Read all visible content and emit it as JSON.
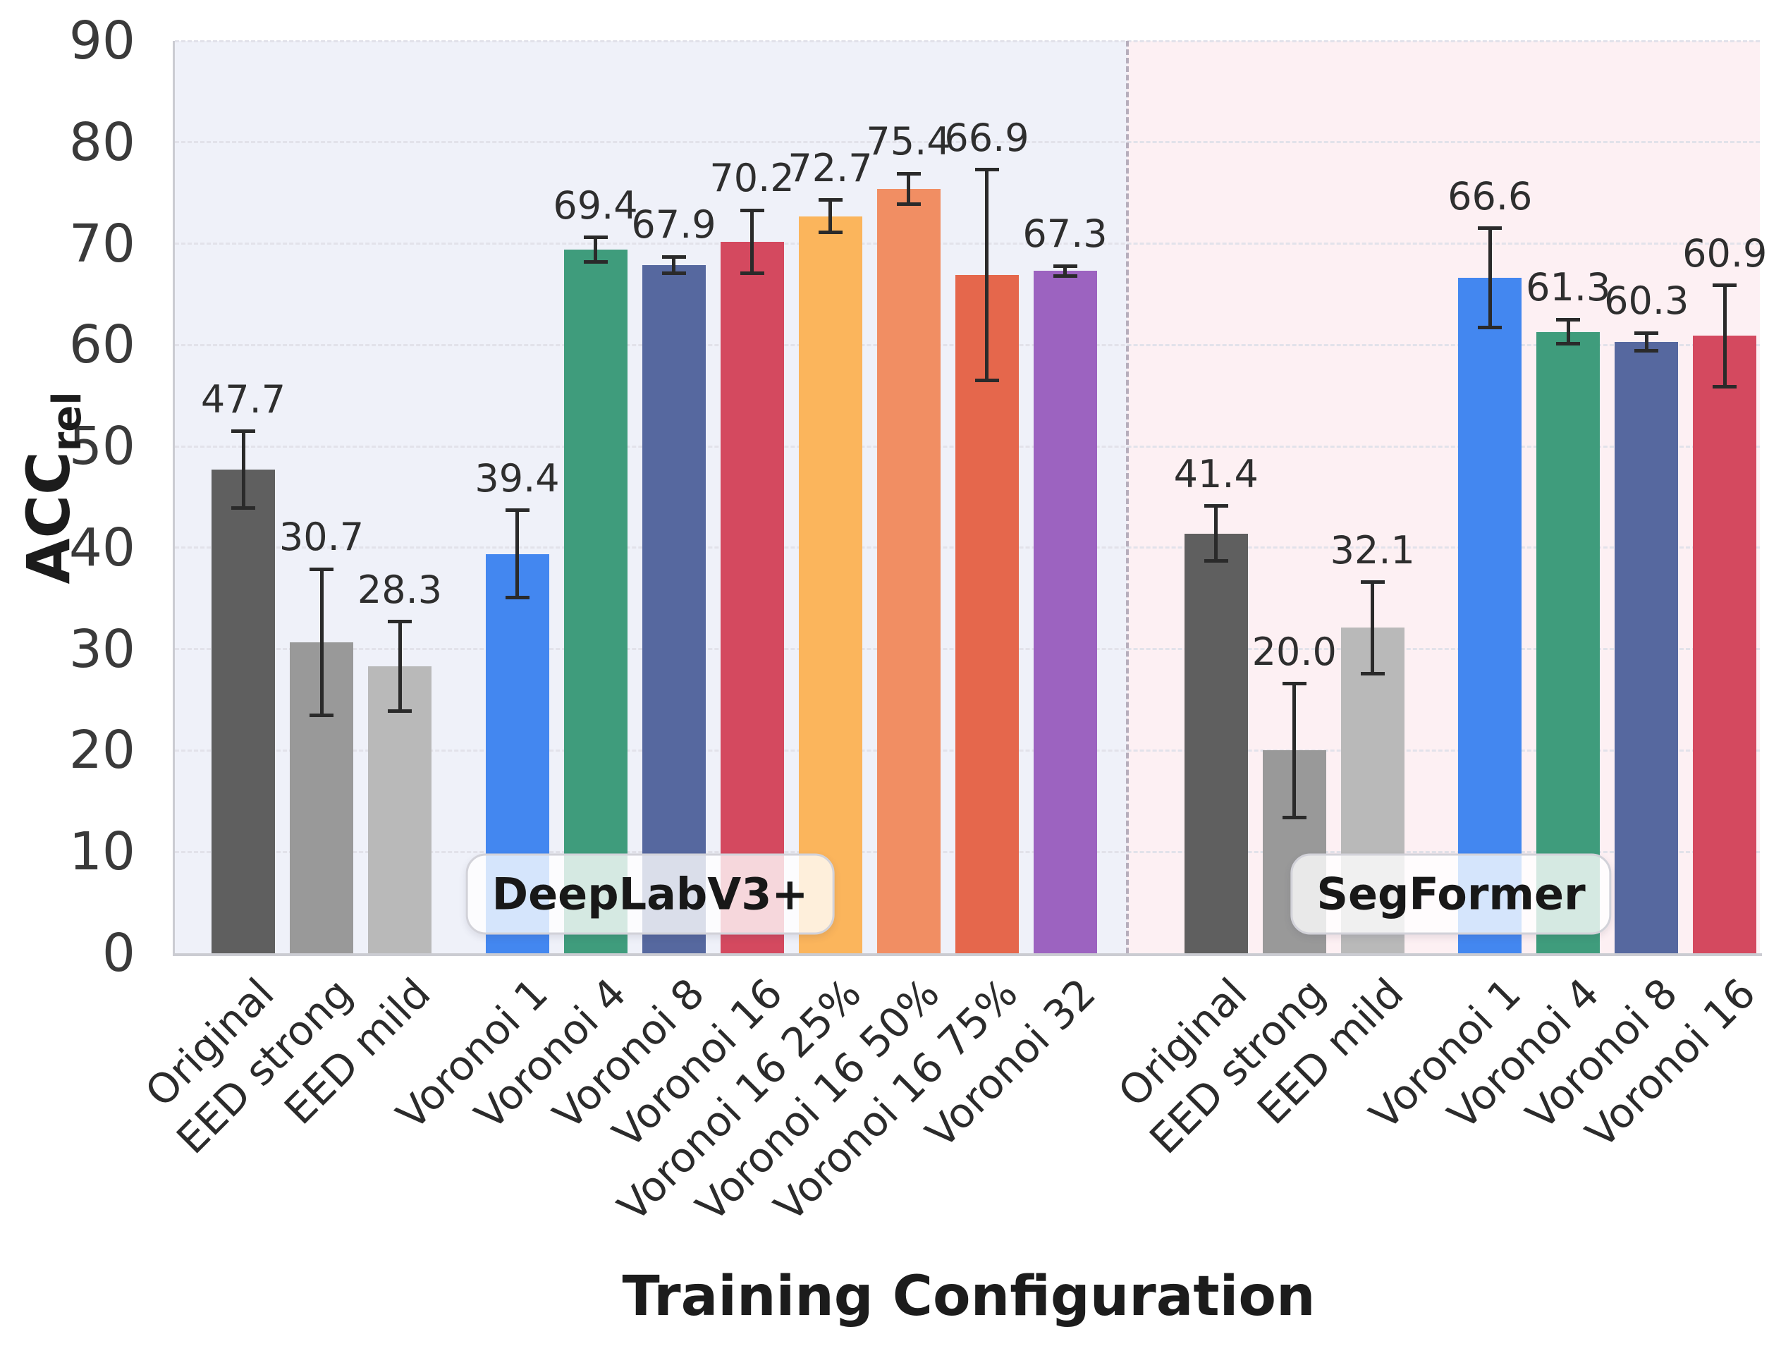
{
  "chart_data": {
    "type": "bar",
    "xlabel": "Training Configuration",
    "ylabel_main": "ACC",
    "ylabel_sub": "rel",
    "ylim": [
      0,
      90
    ],
    "yticks": [
      0,
      10,
      20,
      30,
      40,
      50,
      60,
      70,
      80,
      90
    ],
    "grid": "horizontal-dashed",
    "legend": "none",
    "separator": {
      "style": "dashed",
      "color": "#b7aebc"
    },
    "groups": [
      {
        "name": "DeepLabV3+",
        "region_color": "#eff1f9",
        "bars": [
          {
            "label": "Original",
            "value": 47.7,
            "err": 3.8,
            "color": "#5f5f5f"
          },
          {
            "label": "EED strong",
            "value": 30.7,
            "err": 7.2,
            "color": "#999999"
          },
          {
            "label": "EED mild",
            "value": 28.3,
            "err": 4.4,
            "color": "#b9b9b9"
          },
          {
            "label": "Voronoi 1",
            "value": 39.4,
            "err": 4.3,
            "color": "#4387f0"
          },
          {
            "label": "Voronoi 4",
            "value": 69.4,
            "err": 1.2,
            "color": "#3f9c7c"
          },
          {
            "label": "Voronoi 8",
            "value": 67.9,
            "err": 0.8,
            "color": "#56689f"
          },
          {
            "label": "Voronoi 16",
            "value": 70.2,
            "err": 3.1,
            "color": "#d4495f"
          },
          {
            "label": "Voronoi 16 25%",
            "value": 72.7,
            "err": 1.6,
            "color": "#fbb55c"
          },
          {
            "label": "Voronoi 16 50%",
            "value": 75.4,
            "err": 1.5,
            "color": "#f18e63"
          },
          {
            "label": "Voronoi 16 75%",
            "value": 66.9,
            "err": 10.4,
            "color": "#e5674c"
          },
          {
            "label": "Voronoi 32",
            "value": 67.3,
            "err": 0.5,
            "color": "#9c63c0"
          }
        ]
      },
      {
        "name": "SegFormer",
        "region_color": "#fdf0f3",
        "bars": [
          {
            "label": "Original",
            "value": 41.4,
            "err": 2.7,
            "color": "#5f5f5f"
          },
          {
            "label": "EED strong",
            "value": 20.0,
            "err": 6.6,
            "color": "#999999"
          },
          {
            "label": "EED mild",
            "value": 32.1,
            "err": 4.5,
            "color": "#b9b9b9"
          },
          {
            "label": "Voronoi 1",
            "value": 66.6,
            "err": 4.9,
            "color": "#4387f0"
          },
          {
            "label": "Voronoi 4",
            "value": 61.3,
            "err": 1.2,
            "color": "#3f9c7c"
          },
          {
            "label": "Voronoi 8",
            "value": 60.3,
            "err": 0.9,
            "color": "#56689f"
          },
          {
            "label": "Voronoi 16",
            "value": 60.9,
            "err": 5.0,
            "color": "#d4495f"
          }
        ]
      }
    ]
  }
}
